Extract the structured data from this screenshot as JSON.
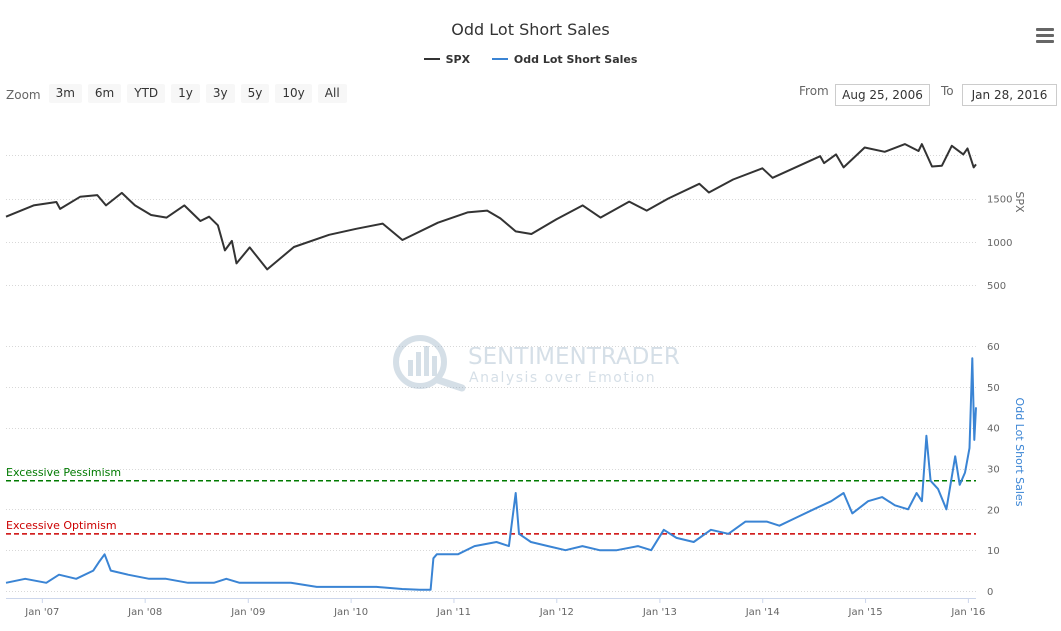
{
  "title": "Odd Lot Short Sales",
  "legend": [
    {
      "label": "SPX",
      "color": "#333333"
    },
    {
      "label": "Odd Lot Short Sales",
      "color": "#3a84d4"
    }
  ],
  "menu_icon": "hamburger-menu-icon",
  "zoom": {
    "label": "Zoom",
    "buttons": [
      "3m",
      "6m",
      "YTD",
      "1y",
      "3y",
      "5y",
      "10y",
      "All"
    ]
  },
  "range": {
    "from_label": "From",
    "from_value": "Aug 25, 2006",
    "to_label": "To",
    "to_value": "Jan 28, 2016"
  },
  "watermark": {
    "name": "SENTIMENTRADER",
    "tagline": "Analysis over Emotion"
  },
  "chart_data": {
    "type": "line",
    "x_range": [
      "2006-08-25",
      "2016-01-28"
    ],
    "x_ticks": [
      "Jan '07",
      "Jan '08",
      "Jan '09",
      "Jan '10",
      "Jan '11",
      "Jan '12",
      "Jan '13",
      "Jan '14",
      "Jan '15",
      "Jan '16"
    ],
    "x_tick_dates": [
      "2007-01-01",
      "2008-01-01",
      "2009-01-01",
      "2010-01-01",
      "2011-01-01",
      "2012-01-01",
      "2013-01-01",
      "2014-01-01",
      "2015-01-01",
      "2016-01-01"
    ],
    "panels": [
      {
        "axis_title": "SPX",
        "axis_side": "right",
        "ylim": [
          500,
          2200
        ],
        "y_ticks": [
          "500",
          "1000",
          "1500"
        ],
        "series": [
          {
            "name": "SPX",
            "color": "#333333",
            "x": [
              "2006-08-25",
              "2006-12-01",
              "2007-02-20",
              "2007-03-05",
              "2007-05-15",
              "2007-07-15",
              "2007-08-15",
              "2007-10-10",
              "2007-11-26",
              "2008-01-22",
              "2008-03-17",
              "2008-05-19",
              "2008-07-15",
              "2008-08-15",
              "2008-09-15",
              "2008-10-10",
              "2008-11-04",
              "2008-11-20",
              "2009-01-06",
              "2009-03-09",
              "2009-06-12",
              "2009-10-15",
              "2010-01-19",
              "2010-04-23",
              "2010-07-02",
              "2010-11-05",
              "2011-02-18",
              "2011-04-29",
              "2011-06-15",
              "2011-08-08",
              "2011-10-03",
              "2011-12-31",
              "2012-04-02",
              "2012-06-04",
              "2012-09-14",
              "2012-11-15",
              "2013-01-31",
              "2013-05-21",
              "2013-06-24",
              "2013-09-18",
              "2013-12-31",
              "2014-02-05",
              "2014-07-24",
              "2014-08-07",
              "2014-09-18",
              "2014-10-15",
              "2014-12-29",
              "2015-03-10",
              "2015-05-21",
              "2015-07-08",
              "2015-07-20",
              "2015-08-25",
              "2015-09-29",
              "2015-11-03",
              "2015-12-14",
              "2015-12-29",
              "2016-01-20",
              "2016-01-28"
            ],
            "y": [
              1290,
              1420,
              1460,
              1380,
              1520,
              1540,
              1420,
              1565,
              1420,
              1310,
              1280,
              1420,
              1240,
              1290,
              1190,
              900,
              1010,
              750,
              935,
              680,
              940,
              1080,
              1150,
              1210,
              1020,
              1220,
              1340,
              1360,
              1270,
              1120,
              1090,
              1260,
              1420,
              1280,
              1465,
              1360,
              1500,
              1670,
              1570,
              1720,
              1850,
              1740,
              1990,
              1910,
              2010,
              1860,
              2090,
              2040,
              2130,
              2050,
              2130,
              1870,
              1880,
              2110,
              2010,
              2080,
              1860,
              1895
            ]
          }
        ]
      },
      {
        "axis_title": "Odd Lot Short Sales",
        "axis_side": "right",
        "ylim": [
          0,
          60
        ],
        "y_ticks": [
          "0",
          "10",
          "20",
          "30",
          "40",
          "50",
          "60"
        ],
        "series": [
          {
            "name": "Odd Lot Short Sales",
            "color": "#3a84d4",
            "x": [
              "2006-08-25",
              "2006-11-01",
              "2007-01-15",
              "2007-03-01",
              "2007-05-01",
              "2007-07-01",
              "2007-07-20",
              "2007-08-10",
              "2007-09-01",
              "2007-11-01",
              "2008-01-15",
              "2008-03-15",
              "2008-06-01",
              "2008-09-01",
              "2008-10-15",
              "2008-12-01",
              "2009-03-01",
              "2009-06-01",
              "2009-09-01",
              "2009-12-01",
              "2010-01-15",
              "2010-04-01",
              "2010-07-01",
              "2010-09-01",
              "2010-10-10",
              "2010-10-20",
              "2010-11-01",
              "2011-01-15",
              "2011-03-15",
              "2011-06-01",
              "2011-07-15",
              "2011-08-08",
              "2011-08-20",
              "2011-10-01",
              "2011-12-01",
              "2012-02-01",
              "2012-04-01",
              "2012-06-01",
              "2012-08-01",
              "2012-10-15",
              "2012-12-01",
              "2013-01-15",
              "2013-03-01",
              "2013-05-01",
              "2013-07-01",
              "2013-09-01",
              "2013-11-01",
              "2014-01-15",
              "2014-03-01",
              "2014-05-01",
              "2014-07-01",
              "2014-09-01",
              "2014-10-15",
              "2014-11-15",
              "2015-01-10",
              "2015-03-01",
              "2015-04-15",
              "2015-06-01",
              "2015-07-01",
              "2015-07-20",
              "2015-08-05",
              "2015-08-20",
              "2015-09-15",
              "2015-10-15",
              "2015-11-15",
              "2015-12-01",
              "2015-12-20",
              "2016-01-05",
              "2016-01-15",
              "2016-01-22",
              "2016-01-28"
            ],
            "y": [
              2,
              3,
              2,
              4,
              3,
              5,
              7,
              9,
              5,
              4,
              3,
              3,
              2,
              2,
              3,
              2,
              2,
              2,
              1,
              1,
              1,
              1,
              0.5,
              0.3,
              0.3,
              8,
              9,
              9,
              11,
              12,
              11,
              24,
              14,
              12,
              11,
              10,
              11,
              10,
              10,
              11,
              10,
              15,
              13,
              12,
              15,
              14,
              17,
              17,
              16,
              18,
              20,
              22,
              24,
              19,
              22,
              23,
              21,
              20,
              24,
              22,
              38,
              27,
              25,
              20,
              33,
              26,
              29,
              35,
              57,
              37,
              45
            ]
          }
        ]
      }
    ],
    "annotations": [
      {
        "text": "Excessive Pessimism",
        "panel": 1,
        "y": 27,
        "color": "#007a00",
        "style": "dashed"
      },
      {
        "text": "Excessive Optimism",
        "panel": 1,
        "y": 14,
        "color": "#cc0000",
        "style": "dashed"
      }
    ]
  }
}
